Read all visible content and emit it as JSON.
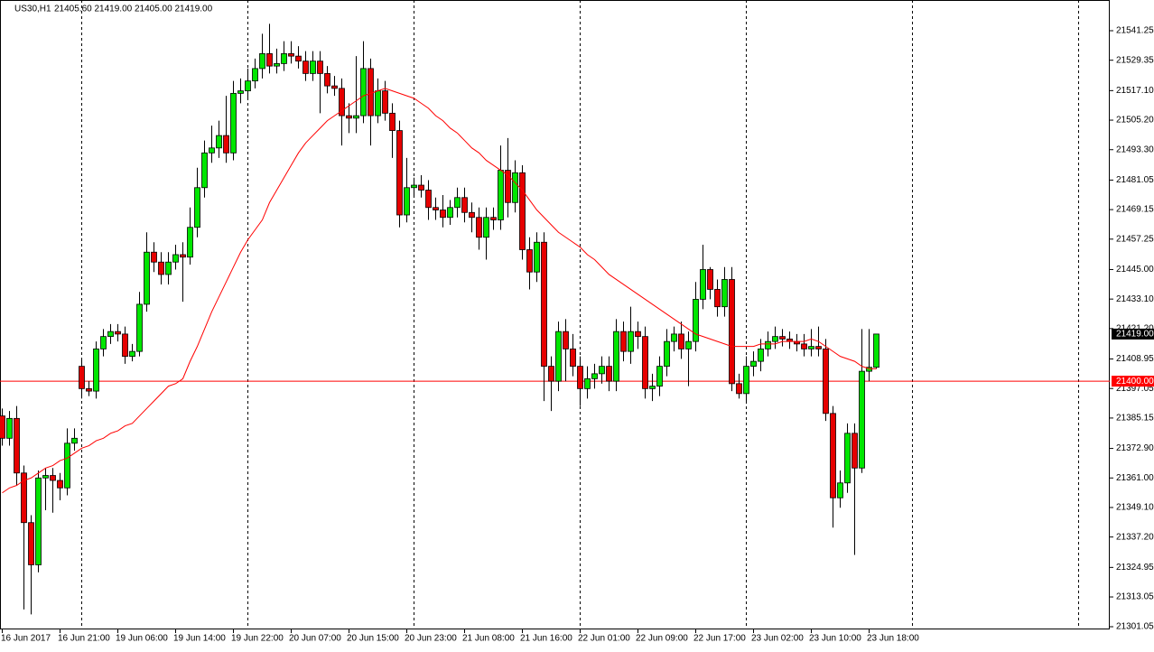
{
  "chart_data": {
    "type": "candlestick",
    "title": "US30,H1",
    "ohlc_text": "21405.60 21419.00 21405.00 21419.00",
    "categories": [
      "16 Jun 2017",
      null,
      null,
      null,
      null,
      null,
      null,
      null,
      "16 Jun 21:00",
      null,
      null,
      null,
      null,
      null,
      null,
      null,
      "19 Jun 06:00",
      null,
      null,
      null,
      null,
      null,
      null,
      null,
      "19 Jun 14:00",
      null,
      null,
      null,
      null,
      null,
      null,
      null,
      "19 Jun 22:00",
      null,
      null,
      null,
      null,
      null,
      null,
      null,
      "20 Jun 07:00",
      null,
      null,
      null,
      null,
      null,
      null,
      null,
      "20 Jun 15:00",
      null,
      null,
      null,
      null,
      null,
      null,
      null,
      "20 Jun 23:00",
      null,
      null,
      null,
      null,
      null,
      null,
      null,
      "21 Jun 08:00",
      null,
      null,
      null,
      null,
      null,
      null,
      null,
      "21 Jun 16:00",
      null,
      null,
      null,
      null,
      null,
      null,
      null,
      "22 Jun 01:00",
      null,
      null,
      null,
      null,
      null,
      null,
      null,
      "22 Jun 09:00",
      null,
      null,
      null,
      null,
      null,
      null,
      null,
      "22 Jun 17:00",
      null,
      null,
      null,
      null,
      null,
      null,
      null,
      "23 Jun 02:00",
      null,
      null,
      null,
      null,
      null,
      null,
      null,
      "23 Jun 10:00",
      null,
      null,
      null,
      null,
      null,
      null,
      null,
      "23 Jun 18:00",
      null
    ],
    "open": [
      21386,
      21377,
      21385,
      21363,
      21343,
      21326,
      21361,
      21362,
      21360,
      21357,
      21375,
      21406,
      21397,
      21396,
      21413,
      21418,
      21420,
      21419,
      21410,
      21412,
      21431,
      21452,
      21448,
      21443,
      21448,
      21451,
      21450,
      21462,
      21478,
      21492,
      21494,
      21499,
      21492,
      21516,
      21517,
      21521,
      21526,
      21532,
      21527,
      21528,
      21532,
      21531,
      21529,
      21524,
      21529,
      21524,
      21519,
      21518,
      21507,
      21506,
      21507,
      21526,
      21507,
      21517,
      21508,
      21501,
      21467,
      21478,
      21479,
      21477,
      21470,
      21469,
      21466,
      21470,
      21474,
      21468,
      21466,
      21458,
      21466,
      21465,
      21485,
      21472,
      21484,
      21453,
      21444,
      21456,
      21406,
      21400,
      21420,
      21413,
      21406,
      21397,
      21401,
      21403,
      21406,
      21400,
      21420,
      21412,
      21420,
      21418,
      21397,
      21398,
      21406,
      21416,
      21419,
      21413,
      21416,
      21433,
      21445,
      21437,
      21430,
      21441,
      21399,
      21395,
      21406,
      21408,
      21413,
      21416,
      21418,
      21417,
      21416,
      21415,
      21413,
      21414,
      21413,
      21387,
      21353,
      21359,
      21379,
      21365,
      21404,
      21405.6
    ],
    "high": [
      21389,
      21388,
      21390,
      21366,
      21346,
      21364,
      21365,
      21365,
      21363,
      21381,
      21381,
      21409,
      21400,
      21416,
      21421,
      21423,
      21423,
      21422,
      21415,
      21436,
      21460,
      21456,
      21452,
      21452,
      21455,
      21456,
      21470,
      21486,
      21497,
      21503,
      21505,
      21515,
      21521,
      21522,
      21526,
      21530,
      21540,
      21544,
      21534,
      21537,
      21537,
      21535,
      21533,
      21533,
      21533,
      21527,
      21523,
      21522,
      21512,
      21531,
      21537,
      21530,
      21522,
      21521,
      21512,
      21505,
      21490,
      21482,
      21483,
      21481,
      21474,
      21475,
      21473,
      21478,
      21478,
      21472,
      21470,
      21470,
      21470,
      21495,
      21498,
      21489,
      21487,
      21458,
      21460,
      21460,
      21410,
      21424,
      21425,
      21419,
      21410,
      21406,
      21407,
      21410,
      21410,
      21425,
      21424,
      21430,
      21424,
      21422,
      21403,
      21410,
      21421,
      21422,
      21424,
      21420,
      21440,
      21455,
      21446,
      21441,
      21446,
      21446,
      21403,
      21410,
      21412,
      21417,
      21420,
      21422,
      21421,
      21420,
      21419,
      21419,
      21421,
      21422,
      21417,
      21390,
      21364,
      21383,
      21383,
      21421,
      21421,
      21419
    ],
    "low": [
      21374,
      21374,
      21358,
      21308,
      21306,
      21323,
      21348,
      21347,
      21352,
      21354,
      21372,
      21393,
      21394,
      21393,
      21410,
      21415,
      21416,
      21407,
      21408,
      21410,
      21428,
      21444,
      21439,
      21439,
      21445,
      21432,
      21447,
      21458,
      21474,
      21488,
      21490,
      21488,
      21489,
      21512,
      21514,
      21518,
      21522,
      21524,
      21524,
      21525,
      21528,
      21526,
      21521,
      21521,
      21508,
      21516,
      21515,
      21495,
      21500,
      21500,
      21504,
      21495,
      21504,
      21505,
      21490,
      21462,
      21464,
      21474,
      21474,
      21465,
      21465,
      21462,
      21463,
      21466,
      21464,
      21460,
      21453,
      21449,
      21461,
      21461,
      21466,
      21468,
      21449,
      21437,
      21440,
      21392,
      21388,
      21396,
      21400,
      21402,
      21390,
      21393,
      21397,
      21399,
      21396,
      21396,
      21408,
      21407,
      21413,
      21393,
      21392,
      21394,
      21402,
      21412,
      21409,
      21398,
      21412,
      21429,
      21433,
      21426,
      21426,
      21396,
      21393,
      21392,
      21402,
      21404,
      21410,
      21413,
      21414,
      21413,
      21412,
      21410,
      21410,
      21410,
      21384,
      21341,
      21349,
      21355,
      21330,
      21363,
      21400,
      21405
    ],
    "close": [
      21377,
      21385,
      21363,
      21343,
      21326,
      21361,
      21362,
      21360,
      21357,
      21375,
      21377,
      21397,
      21396,
      21413,
      21418,
      21420,
      21419,
      21410,
      21412,
      21431,
      21452,
      21448,
      21443,
      21448,
      21451,
      21450,
      21462,
      21478,
      21492,
      21494,
      21499,
      21492,
      21516,
      21517,
      21521,
      21526,
      21532,
      21527,
      21528,
      21532,
      21531,
      21529,
      21524,
      21529,
      21524,
      21519,
      21518,
      21507,
      21506,
      21507,
      21526,
      21507,
      21517,
      21508,
      21501,
      21467,
      21478,
      21479,
      21477,
      21470,
      21469,
      21466,
      21470,
      21474,
      21468,
      21466,
      21458,
      21466,
      21465,
      21485,
      21472,
      21484,
      21453,
      21444,
      21456,
      21406,
      21400,
      21420,
      21413,
      21406,
      21397,
      21401,
      21403,
      21406,
      21400,
      21420,
      21412,
      21420,
      21418,
      21397,
      21398,
      21406,
      21416,
      21419,
      21413,
      21416,
      21433,
      21445,
      21437,
      21430,
      21441,
      21399,
      21395,
      21406,
      21408,
      21413,
      21416,
      21418,
      21417,
      21416,
      21415,
      21413,
      21414,
      21413,
      21387,
      21353,
      21359,
      21379,
      21365,
      21404,
      21405.6,
      21419
    ],
    "up_color": "#00e600",
    "down_color": "#e60000",
    "ma": {
      "color": "#ff0000",
      "values": [
        21355,
        21357,
        21358,
        21360,
        21361,
        21363,
        21365,
        21366,
        21368,
        21369,
        21371,
        21373,
        21374,
        21376,
        21377,
        21379,
        21380,
        21382,
        21383,
        21386,
        21389,
        21392,
        21395,
        21398,
        21399,
        21401,
        21408,
        21414,
        21421,
        21428,
        21434,
        21440,
        21446,
        21452,
        21457,
        21461,
        21465,
        21472,
        21477,
        21482,
        21487,
        21492,
        21496,
        21499,
        21502,
        21505,
        21507,
        21509,
        21511,
        21513,
        21515,
        21516,
        21517,
        21518,
        21517,
        21516,
        21515,
        21514,
        21512,
        21510,
        21507,
        21505,
        21502,
        21500,
        21497,
        21494,
        21492,
        21489,
        21487,
        21485,
        21483,
        21480,
        21477,
        21473,
        21469,
        21466,
        21463,
        21460,
        21458,
        21456,
        21454,
        21451,
        21449,
        21446,
        21443,
        21441,
        21439,
        21437,
        21435,
        21433,
        21431,
        21429,
        21427,
        21425,
        21423,
        21421,
        21419,
        21418,
        21417,
        21416,
        21415,
        21414,
        21414,
        21414,
        21414,
        21415,
        21415,
        21415,
        21416,
        21416,
        21416,
        21416,
        21417,
        21416,
        21414,
        21412,
        21410,
        21409,
        21408,
        21406,
        21405,
        21405
      ]
    },
    "ylim": [
      21299.96,
      21553.62
    ],
    "yticks": [
      {
        "value": 21541.25,
        "label": "21541.25"
      },
      {
        "value": 21529.35,
        "label": "21529.35"
      },
      {
        "value": 21517.1,
        "label": "21517.10"
      },
      {
        "value": 21505.2,
        "label": "21505.20"
      },
      {
        "value": 21493.3,
        "label": "21493.30"
      },
      {
        "value": 21481.05,
        "label": "21481.05"
      },
      {
        "value": 21469.15,
        "label": "21469.15"
      },
      {
        "value": 21457.25,
        "label": "21457.25"
      },
      {
        "value": 21445,
        "label": "21445.00"
      },
      {
        "value": 21433.1,
        "label": "21433.10"
      },
      {
        "value": 21421.2,
        "label": "21421.20"
      },
      {
        "value": 21408.95,
        "label": "21408.95"
      },
      {
        "value": 21397.05,
        "label": "21397.05"
      },
      {
        "value": 21385.15,
        "label": "21385.15"
      },
      {
        "value": 21372.9,
        "label": "21372.90"
      },
      {
        "value": 21361,
        "label": "21361.00"
      },
      {
        "value": 21349.1,
        "label": "21349.10"
      },
      {
        "value": 21337.2,
        "label": "21337.20"
      },
      {
        "value": 21324.95,
        "label": "21324.95"
      },
      {
        "value": 21313.05,
        "label": "21313.05"
      },
      {
        "value": 21301.05,
        "label": "21301.05"
      }
    ],
    "hline": {
      "value": 21400,
      "label": "21400.00",
      "color": "#ff0000"
    },
    "last_price": {
      "value": 21419,
      "label": "21419.00"
    }
  }
}
